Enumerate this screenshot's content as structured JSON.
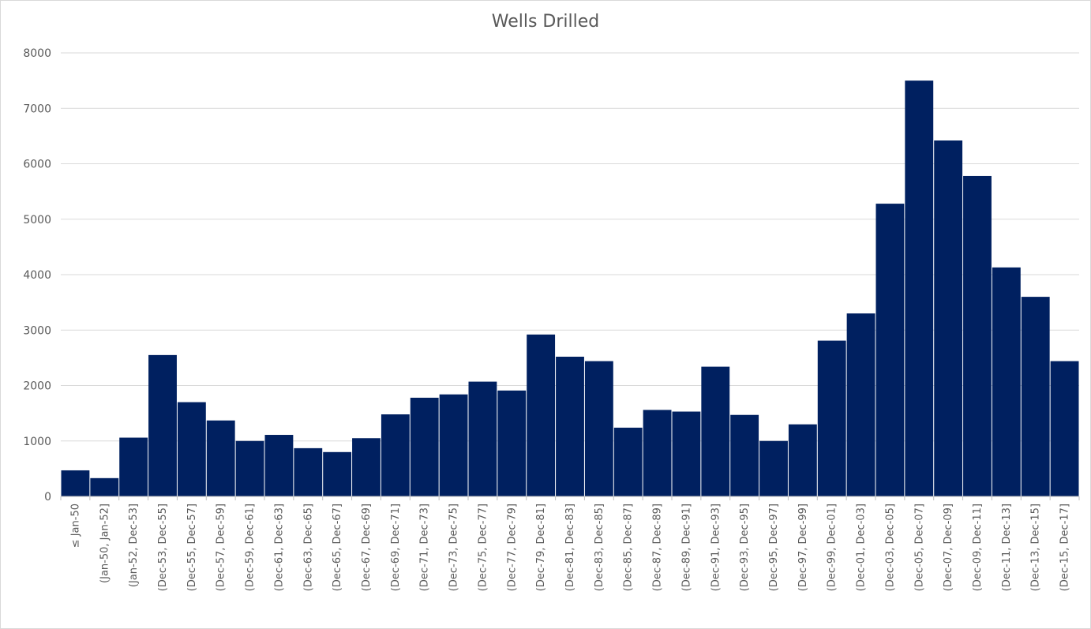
{
  "chart_data": {
    "type": "bar",
    "title": "Wells Drilled",
    "xlabel": "",
    "ylabel": "",
    "ylim": [
      0,
      8000
    ],
    "yticks": [
      0,
      1000,
      2000,
      3000,
      4000,
      5000,
      6000,
      7000,
      8000
    ],
    "grid": true,
    "legend": "none",
    "bar_color": "#002060",
    "categories": [
      "≤ Jan-50",
      "(Jan-50, Jan-52]",
      "(Jan-52, Dec-53]",
      "(Dec-53, Dec-55]",
      "(Dec-55, Dec-57]",
      "(Dec-57, Dec-59]",
      "(Dec-59, Dec-61]",
      "(Dec-61, Dec-63]",
      "(Dec-63, Dec-65]",
      "(Dec-65, Dec-67]",
      "(Dec-67, Dec-69]",
      "(Dec-69, Dec-71]",
      "(Dec-71, Dec-73]",
      "(Dec-73, Dec-75]",
      "(Dec-75, Dec-77]",
      "(Dec-77, Dec-79]",
      "(Dec-79, Dec-81]",
      "(Dec-81, Dec-83]",
      "(Dec-83, Dec-85]",
      "(Dec-85, Dec-87]",
      "(Dec-87, Dec-89]",
      "(Dec-89, Dec-91]",
      "(Dec-91, Dec-93]",
      "(Dec-93, Dec-95]",
      "(Dec-95, Dec-97]",
      "(Dec-97, Dec-99]",
      "(Dec-99, Dec-01]",
      "(Dec-01, Dec-03]",
      "(Dec-03, Dec-05]",
      "(Dec-05, Dec-07]",
      "(Dec-07, Dec-09]",
      "(Dec-09, Dec-11]",
      "(Dec-11, Dec-13]",
      "(Dec-13, Dec-15]",
      "(Dec-15, Dec-17]"
    ],
    "values": [
      470,
      330,
      1060,
      2550,
      1700,
      1370,
      1000,
      1110,
      870,
      800,
      1050,
      1480,
      1780,
      1840,
      2070,
      1910,
      2920,
      2520,
      2440,
      1240,
      1560,
      1530,
      2340,
      1470,
      1000,
      1300,
      2810,
      3300,
      5280,
      7500,
      6420,
      5780,
      4130,
      3600,
      2440
    ]
  }
}
